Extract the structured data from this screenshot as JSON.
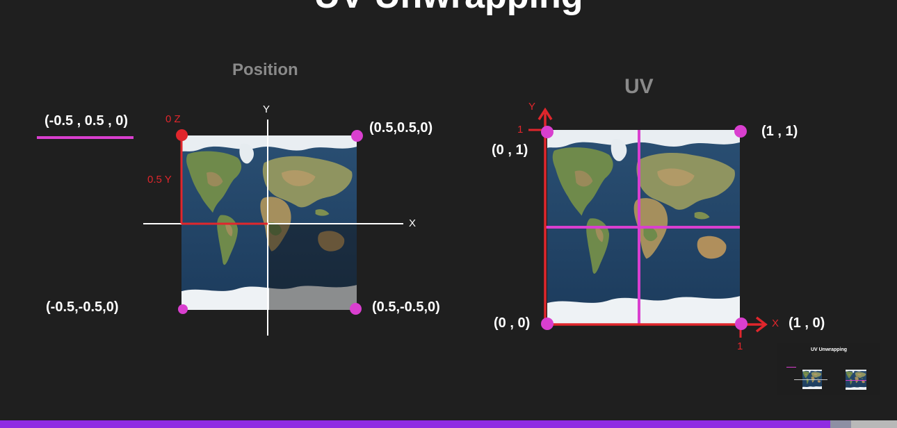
{
  "slide_title": "UV Unwrapping",
  "position_panel": {
    "heading": "Position",
    "legend_coord": "(-0.5 , 0.5 , 0)",
    "axis_x": "X",
    "axis_y": "Y",
    "label_z": "0 Z",
    "label_y": "0.5 Y",
    "coords": {
      "top_right": "(0.5,0.5,0)",
      "bottom_left": "(-0.5,-0.5,0)",
      "bottom_right": "(0.5,-0.5,0)"
    }
  },
  "uv_panel": {
    "heading": "UV",
    "axis_x": "X",
    "axis_y": "Y",
    "tick_y": "1",
    "tick_x": "1",
    "coords": {
      "top_left": "(0 , 1)",
      "top_right": "(1 , 1)",
      "bottom_left": "(0 , 0)",
      "bottom_right": "(1 , 0)"
    }
  },
  "colors": {
    "background": "#1f1f1f",
    "magenta": "#d93fcf",
    "red": "#e0262c",
    "purple_bar": "#8f2be2",
    "heading_gray": "#8a8a8a"
  }
}
